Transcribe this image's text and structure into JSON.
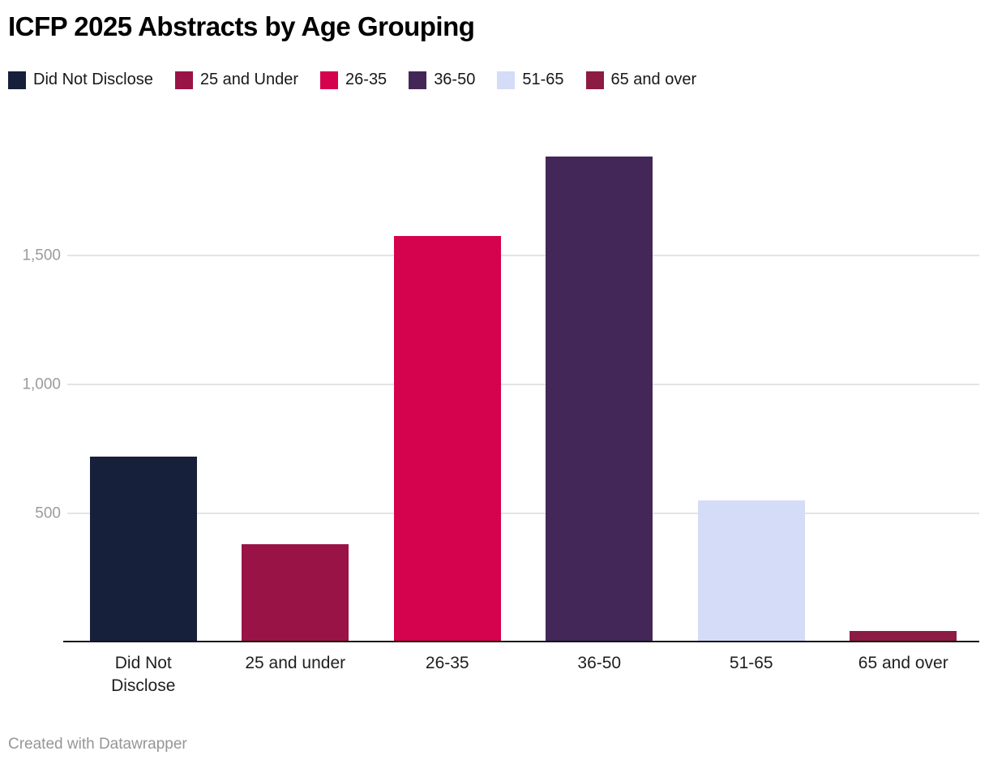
{
  "title": "ICFP 2025 Abstracts by Age Grouping",
  "footer": {
    "credit_text": "Created with Datawrapper"
  },
  "colors": {
    "navy": "#16203a",
    "maroon": "#9a1347",
    "crimson": "#d5024e",
    "purple": "#432758",
    "lavender": "#d5dcf7",
    "dark_maroon": "#8c1c43",
    "gridline": "#e4e4e4",
    "axis_line": "#161616",
    "ytick_text": "#9b9b9b",
    "xtick_text": "#1f1f1f"
  },
  "chart_data": {
    "type": "bar",
    "title": "ICFP 2025 Abstracts by Age Grouping",
    "categories": [
      "Did Not Disclose",
      "25 and under",
      "26-35",
      "36-50",
      "51-65",
      "65 and over"
    ],
    "values": [
      720,
      380,
      1575,
      1885,
      550,
      45
    ],
    "bar_colors": [
      "#16203a",
      "#9a1347",
      "#d5024e",
      "#432758",
      "#d5dcf7",
      "#8c1c43"
    ],
    "legend_items": [
      {
        "label": "Did Not Disclose",
        "color": "#16203a"
      },
      {
        "label": "25 and Under",
        "color": "#9a1347"
      },
      {
        "label": "26-35",
        "color": "#d5024e"
      },
      {
        "label": "36-50",
        "color": "#432758"
      },
      {
        "label": "51-65",
        "color": "#d5dcf7"
      },
      {
        "label": "65 and over",
        "color": "#8c1c43"
      }
    ],
    "legend_position": "top",
    "xlabel": "",
    "ylabel": "",
    "yticks": [
      500,
      1000,
      1500
    ],
    "ytick_labels": [
      "500",
      "1,000",
      "1,500"
    ],
    "ylim": [
      0,
      2020
    ],
    "grid": "horizontal-only"
  }
}
